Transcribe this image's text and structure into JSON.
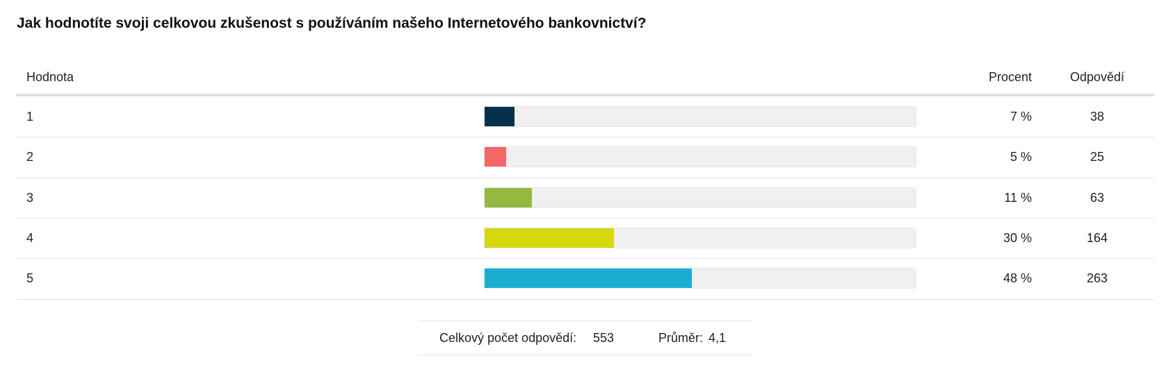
{
  "title": "Jak hodnotíte svoji celkovou zkušenost s používáním našeho Internetového bankovnictví?",
  "table": {
    "columns": [
      "Hodnota",
      "Procent",
      "Odpovědí"
    ],
    "xlim": [
      0,
      100
    ],
    "rows": [
      {
        "value": 1,
        "percent": {
          "value": 7,
          "label": "7 %"
        },
        "count": 38,
        "color": "#04314b"
      },
      {
        "value": 2,
        "percent": {
          "value": 5,
          "label": "5 %"
        },
        "count": 25,
        "color": "#f46767"
      },
      {
        "value": 3,
        "percent": {
          "value": 11,
          "label": "11 %"
        },
        "count": 63,
        "color": "#94b840"
      },
      {
        "value": 4,
        "percent": {
          "value": 30,
          "label": "30 %"
        },
        "count": 164,
        "color": "#d6d80e"
      },
      {
        "value": 5,
        "percent": {
          "value": 48,
          "label": "48 %"
        },
        "count": 263,
        "color": "#1aaed0"
      }
    ]
  },
  "footer": {
    "total_label": "Celkový počet odpovědí:",
    "total": 553,
    "mean_label": "Průměr:",
    "mean": "4,1"
  }
}
